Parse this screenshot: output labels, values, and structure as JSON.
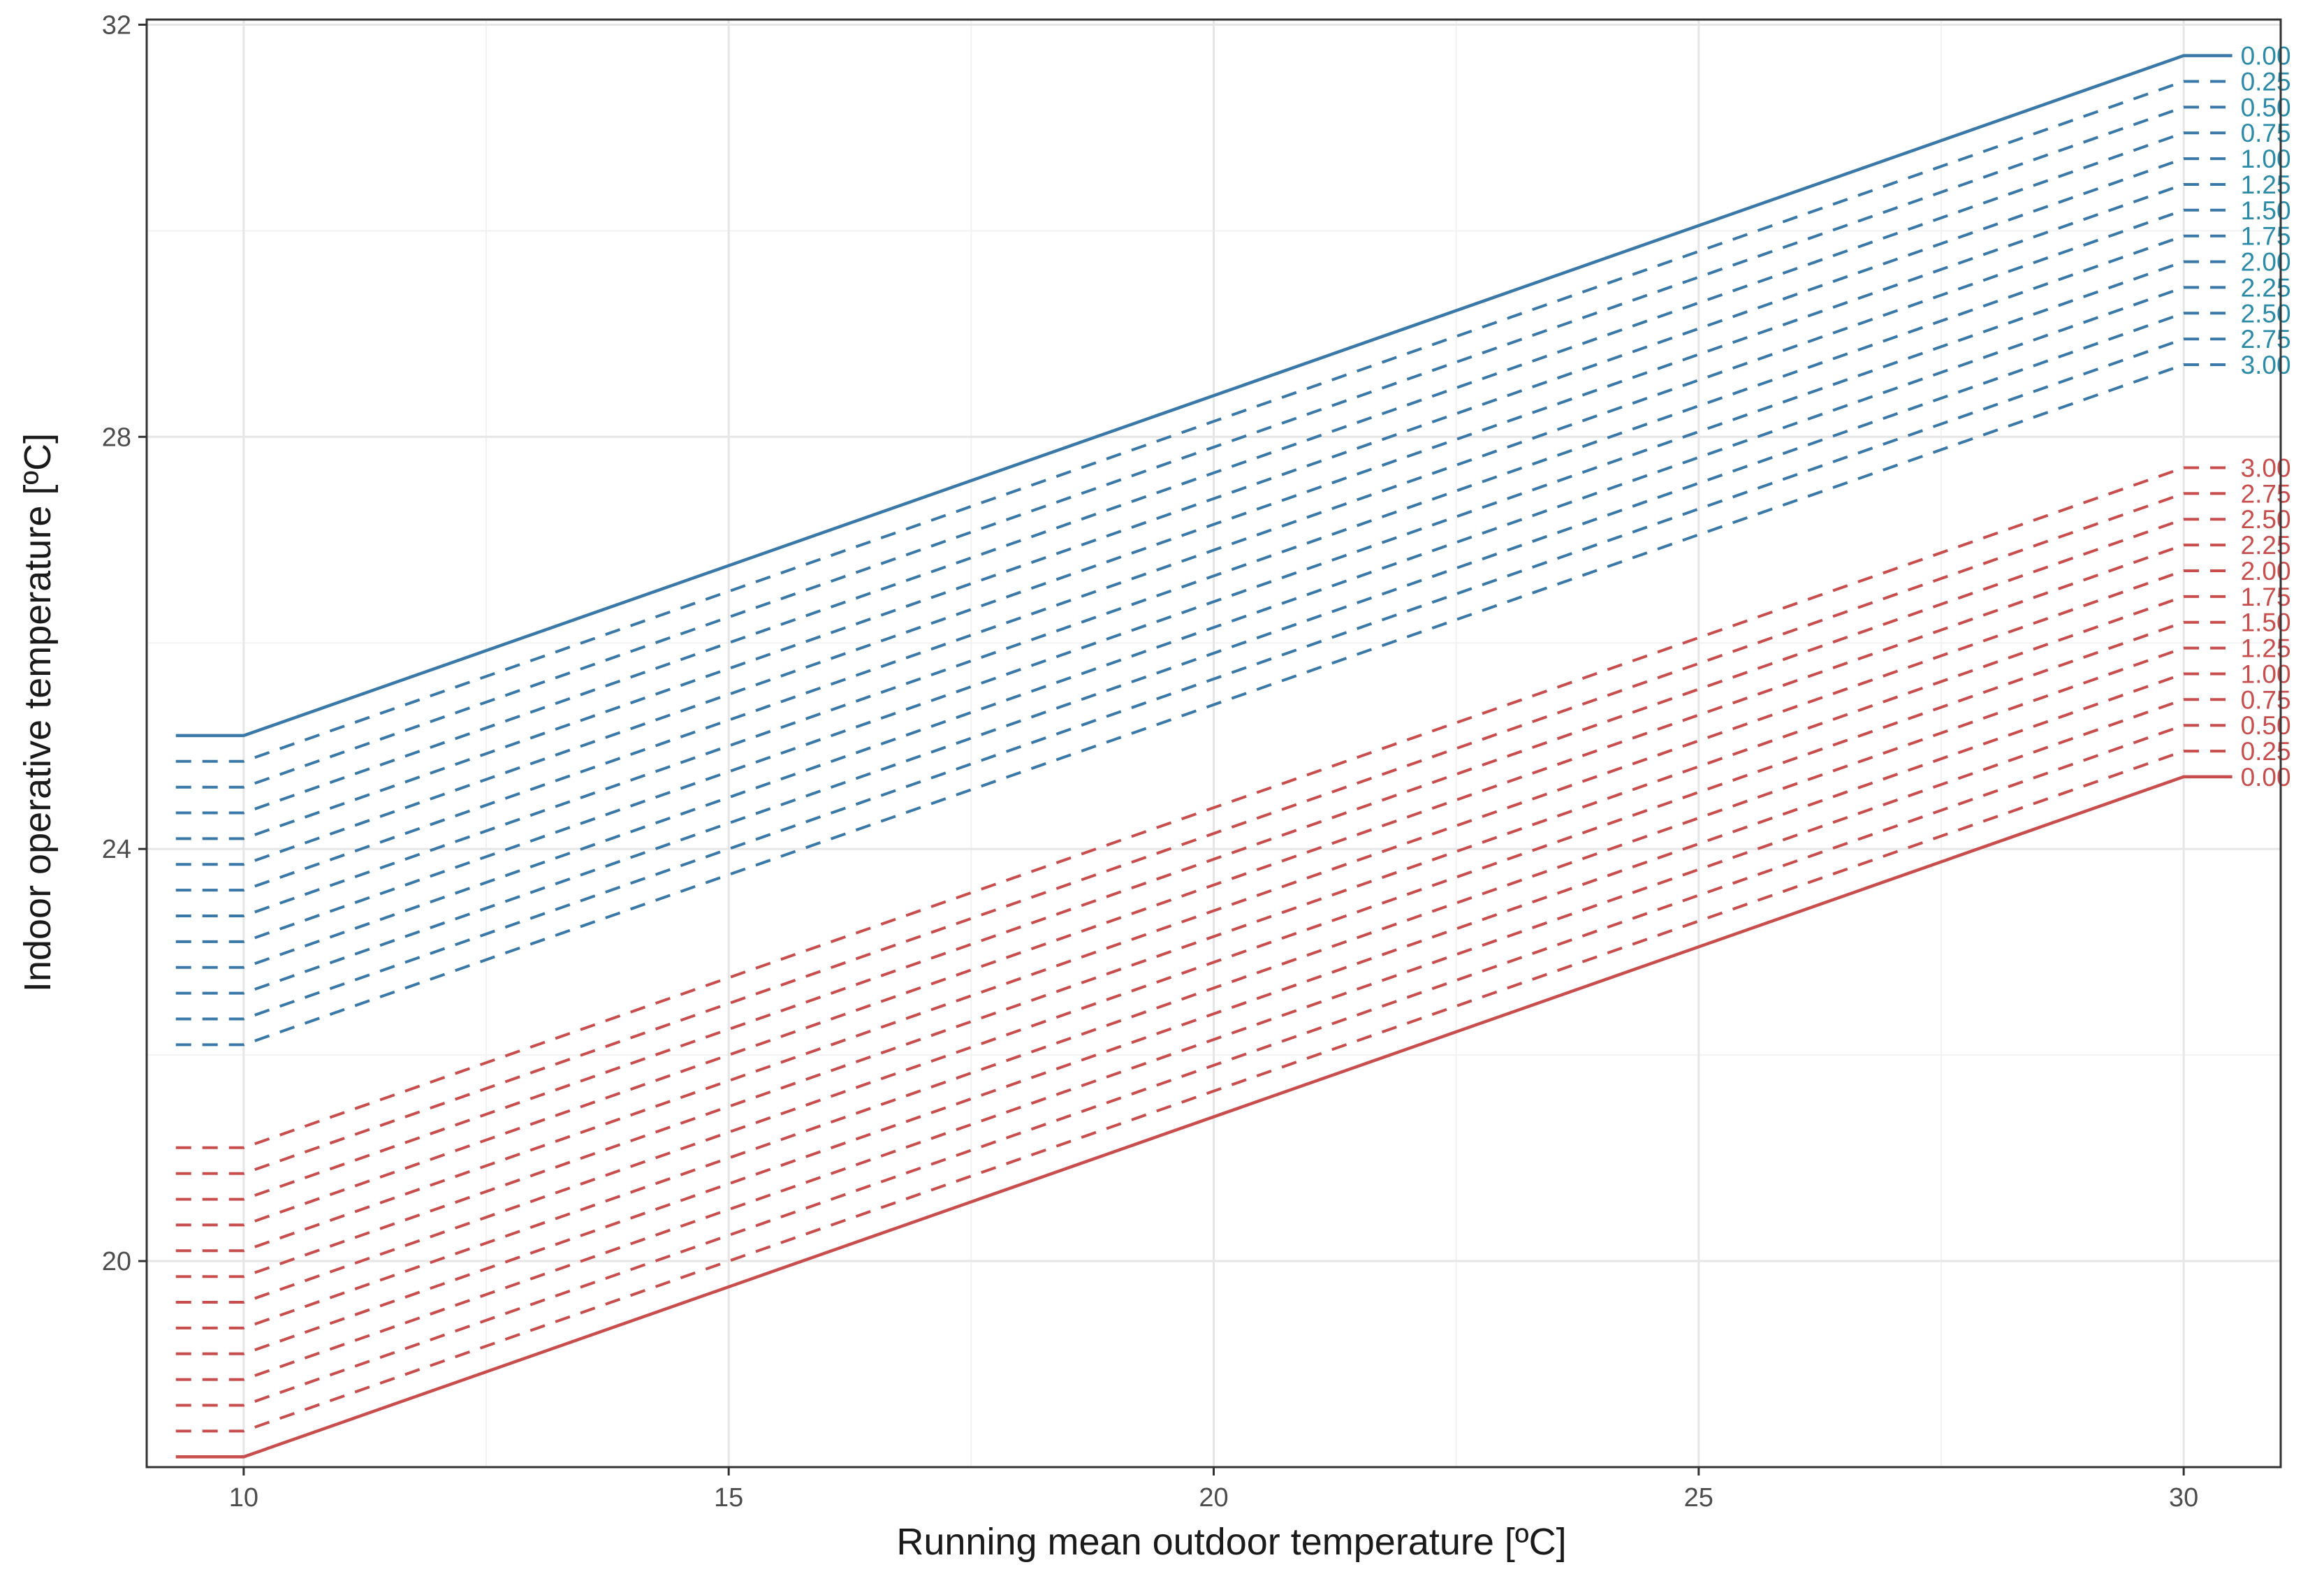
{
  "chart_data": {
    "type": "line",
    "title": "",
    "xlabel": "Running mean outdoor temperature [ºC]",
    "ylabel": "Indoor operative temperature [ºC]",
    "xlim": [
      9.0,
      31.0
    ],
    "ylim": [
      18.0,
      32.05
    ],
    "x_major_ticks": [
      10,
      15,
      20,
      25,
      30
    ],
    "x_minor_ticks": [
      12.5,
      17.5,
      22.5,
      27.5
    ],
    "y_major_ticks": [
      20,
      24,
      28,
      32
    ],
    "y_minor_ticks": [
      22,
      26,
      30
    ],
    "x_tick_labels": [
      "10",
      "15",
      "20",
      "25",
      "30"
    ],
    "y_tick_labels": [
      "20",
      "24",
      "28",
      "32"
    ],
    "grid": true,
    "upper_color": "#3a78a8",
    "lower_color": "#c84d4d",
    "upper_label_color": "#2a8aa8",
    "lower_label_color": "#c84d4d",
    "x_start": 9.3,
    "x_break_low": 10,
    "x_break_high": 30,
    "x_end": 30.5,
    "slope": 0.33,
    "upper_series": [
      {
        "name": "0.00",
        "offset": 0.0,
        "value_at_10": 25.1,
        "value_at_30": 31.7,
        "dashed": false
      },
      {
        "name": "0.25",
        "offset": 0.25,
        "value_at_10": 24.85,
        "value_at_30": 31.45,
        "dashed": true
      },
      {
        "name": "0.50",
        "offset": 0.5,
        "value_at_10": 24.6,
        "value_at_30": 31.2,
        "dashed": true
      },
      {
        "name": "0.75",
        "offset": 0.75,
        "value_at_10": 24.35,
        "value_at_30": 30.95,
        "dashed": true
      },
      {
        "name": "1.00",
        "offset": 1.0,
        "value_at_10": 24.1,
        "value_at_30": 30.7,
        "dashed": true
      },
      {
        "name": "1.25",
        "offset": 1.25,
        "value_at_10": 23.85,
        "value_at_30": 30.45,
        "dashed": true
      },
      {
        "name": "1.50",
        "offset": 1.5,
        "value_at_10": 23.6,
        "value_at_30": 30.2,
        "dashed": true
      },
      {
        "name": "1.75",
        "offset": 1.75,
        "value_at_10": 23.35,
        "value_at_30": 29.95,
        "dashed": true
      },
      {
        "name": "2.00",
        "offset": 2.0,
        "value_at_10": 23.1,
        "value_at_30": 29.7,
        "dashed": true
      },
      {
        "name": "2.25",
        "offset": 2.25,
        "value_at_10": 22.85,
        "value_at_30": 29.45,
        "dashed": true
      },
      {
        "name": "2.50",
        "offset": 2.5,
        "value_at_10": 22.6,
        "value_at_30": 29.2,
        "dashed": true
      },
      {
        "name": "2.75",
        "offset": 2.75,
        "value_at_10": 22.35,
        "value_at_30": 28.95,
        "dashed": true
      },
      {
        "name": "3.00",
        "offset": 3.0,
        "value_at_10": 22.1,
        "value_at_30": 28.7,
        "dashed": true
      }
    ],
    "lower_series": [
      {
        "name": "0.00",
        "offset": 0.0,
        "value_at_10": 18.1,
        "value_at_30": 24.7,
        "dashed": false
      },
      {
        "name": "0.25",
        "offset": 0.25,
        "value_at_10": 18.35,
        "value_at_30": 24.95,
        "dashed": true
      },
      {
        "name": "0.50",
        "offset": 0.5,
        "value_at_10": 18.6,
        "value_at_30": 25.2,
        "dashed": true
      },
      {
        "name": "0.75",
        "offset": 0.75,
        "value_at_10": 18.85,
        "value_at_30": 25.45,
        "dashed": true
      },
      {
        "name": "1.00",
        "offset": 1.0,
        "value_at_10": 19.1,
        "value_at_30": 25.7,
        "dashed": true
      },
      {
        "name": "1.25",
        "offset": 1.25,
        "value_at_10": 19.35,
        "value_at_30": 25.95,
        "dashed": true
      },
      {
        "name": "1.50",
        "offset": 1.5,
        "value_at_10": 19.6,
        "value_at_30": 26.2,
        "dashed": true
      },
      {
        "name": "1.75",
        "offset": 1.75,
        "value_at_10": 19.85,
        "value_at_30": 26.45,
        "dashed": true
      },
      {
        "name": "2.00",
        "offset": 2.0,
        "value_at_10": 20.1,
        "value_at_30": 26.7,
        "dashed": true
      },
      {
        "name": "2.25",
        "offset": 2.25,
        "value_at_10": 20.35,
        "value_at_30": 26.95,
        "dashed": true
      },
      {
        "name": "2.50",
        "offset": 2.5,
        "value_at_10": 20.6,
        "value_at_30": 27.2,
        "dashed": true
      },
      {
        "name": "2.75",
        "offset": 2.75,
        "value_at_10": 20.85,
        "value_at_30": 27.45,
        "dashed": true
      },
      {
        "name": "3.00",
        "offset": 3.0,
        "value_at_10": 21.1,
        "value_at_30": 27.7,
        "dashed": true
      }
    ]
  }
}
